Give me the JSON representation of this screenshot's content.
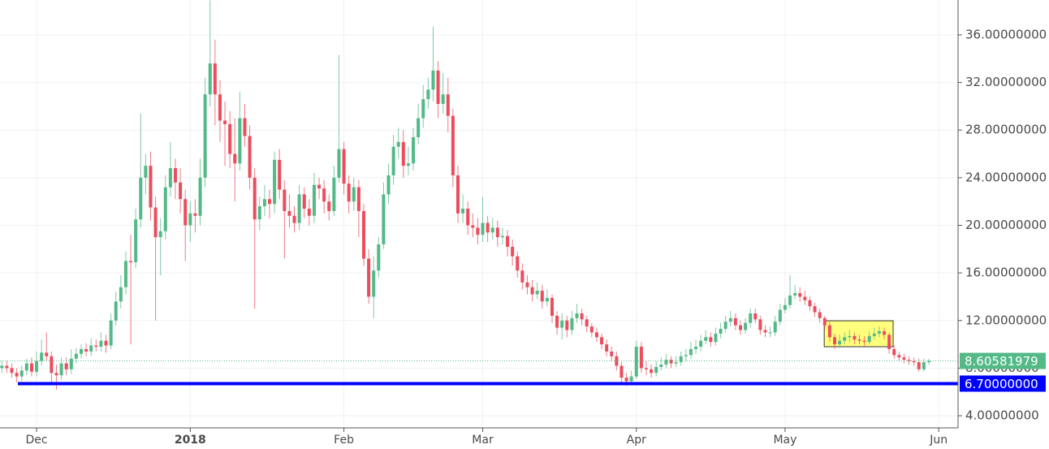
{
  "chart_data": {
    "type": "candlestick",
    "up_color": "#53b987",
    "down_color": "#eb4d5c",
    "grid": true,
    "xlim": [
      -0.38,
      192.9
    ],
    "ylim": [
      2.98,
      38.93
    ],
    "xticks": [
      {
        "value": 7,
        "label": "Dec"
      },
      {
        "value": 38,
        "label": "2018"
      },
      {
        "value": 69,
        "label": "Feb"
      },
      {
        "value": 97,
        "label": "Mar"
      },
      {
        "value": 128,
        "label": "Apr"
      },
      {
        "value": 158,
        "label": "May"
      },
      {
        "value": 189,
        "label": "Jun"
      }
    ],
    "yticks": [
      {
        "value": 4,
        "label": "4.00000000"
      },
      {
        "value": 8,
        "label": "8.00000000"
      },
      {
        "value": 12,
        "label": "12.00000000"
      },
      {
        "value": 16,
        "label": "16.00000000"
      },
      {
        "value": 20,
        "label": "20.00000000"
      },
      {
        "value": 24,
        "label": "24.00000000"
      },
      {
        "value": 28,
        "label": "28.00000000"
      },
      {
        "value": 32,
        "label": "32.00000000"
      },
      {
        "value": 36,
        "label": "36.00000000"
      }
    ],
    "price_lines": [
      {
        "value": 8.60581979,
        "label": "8.60581979",
        "color": "#53b987",
        "style": "dotted"
      },
      {
        "value": 6.7,
        "label": "6.70000000",
        "color": "#0000ff",
        "style": "solid"
      }
    ],
    "highlight": {
      "x": [
        165.9,
        179.8
      ],
      "y": [
        9.8,
        11.98
      ],
      "color": "#ffff66"
    },
    "x": [
      0,
      1,
      2,
      3,
      4,
      5,
      6,
      7,
      8,
      9,
      10,
      11,
      12,
      13,
      14,
      15,
      16,
      17,
      18,
      19,
      20,
      21,
      22,
      23,
      24,
      25,
      26,
      27,
      28,
      29,
      30,
      31,
      32,
      33,
      34,
      35,
      36,
      37,
      38,
      39,
      40,
      41,
      42,
      43,
      44,
      45,
      46,
      47,
      48,
      49,
      50,
      51,
      52,
      53,
      54,
      55,
      56,
      57,
      58,
      59,
      60,
      61,
      62,
      63,
      64,
      65,
      66,
      67,
      68,
      69,
      70,
      71,
      72,
      73,
      74,
      75,
      76,
      77,
      78,
      79,
      80,
      81,
      82,
      83,
      84,
      85,
      86,
      87,
      88,
      89,
      90,
      91,
      92,
      93,
      94,
      95,
      96,
      97,
      98,
      99,
      100,
      101,
      102,
      103,
      104,
      105,
      106,
      107,
      108,
      109,
      110,
      111,
      112,
      113,
      114,
      115,
      116,
      117,
      118,
      119,
      120,
      121,
      122,
      123,
      124,
      125,
      126,
      127,
      128,
      129,
      130,
      131,
      132,
      133,
      134,
      135,
      136,
      137,
      138,
      139,
      140,
      141,
      142,
      143,
      144,
      145,
      146,
      147,
      148,
      149,
      150,
      151,
      152,
      153,
      154,
      155,
      156,
      157,
      158,
      159,
      160,
      161,
      162,
      163,
      164,
      165,
      166,
      167,
      168,
      169,
      170,
      171,
      172,
      173,
      174,
      175,
      176,
      177,
      178,
      179,
      180,
      181,
      182,
      183,
      184,
      185,
      186,
      187
    ],
    "ohlc": [
      [
        8.0,
        8.6,
        7.6,
        8.2
      ],
      [
        8.2,
        8.6,
        7.6,
        8.0
      ],
      [
        8.0,
        8.4,
        7.2,
        7.6
      ],
      [
        7.6,
        8.0,
        6.8,
        7.3
      ],
      [
        7.3,
        8.2,
        6.9,
        7.8
      ],
      [
        7.8,
        8.8,
        7.4,
        8.4
      ],
      [
        8.4,
        8.9,
        7.3,
        7.7
      ],
      [
        7.7,
        9.4,
        7.3,
        8.6
      ],
      [
        8.6,
        10.4,
        8.2,
        9.3
      ],
      [
        9.3,
        11.0,
        8.6,
        9.0
      ],
      [
        9.0,
        9.4,
        6.6,
        7.6
      ],
      [
        7.6,
        8.3,
        6.2,
        7.4
      ],
      [
        7.4,
        8.9,
        7.0,
        8.4
      ],
      [
        8.4,
        8.9,
        7.4,
        7.9
      ],
      [
        7.9,
        9.6,
        7.5,
        8.8
      ],
      [
        8.8,
        9.7,
        8.4,
        9.2
      ],
      [
        9.2,
        10.0,
        8.8,
        9.6
      ],
      [
        9.6,
        10.1,
        9.0,
        9.4
      ],
      [
        9.4,
        10.5,
        9.0,
        9.9
      ],
      [
        9.9,
        10.4,
        9.4,
        9.8
      ],
      [
        9.8,
        11.0,
        9.4,
        10.3
      ],
      [
        10.3,
        10.8,
        9.3,
        9.9
      ],
      [
        9.9,
        12.6,
        9.6,
        12.0
      ],
      [
        12.0,
        14.4,
        11.6,
        13.6
      ],
      [
        13.6,
        15.8,
        13.0,
        14.8
      ],
      [
        14.8,
        17.8,
        14.2,
        17.0
      ],
      [
        17.0,
        19.2,
        10.0,
        16.9
      ],
      [
        16.9,
        21.4,
        16.4,
        20.5
      ],
      [
        20.5,
        29.4,
        19.8,
        24.0
      ],
      [
        24.0,
        26.0,
        22.6,
        25.0
      ],
      [
        25.0,
        26.2,
        20.4,
        21.5
      ],
      [
        21.5,
        22.4,
        12.0,
        19.0
      ],
      [
        19.0,
        20.6,
        15.8,
        19.5
      ],
      [
        19.5,
        24.2,
        18.8,
        23.2
      ],
      [
        23.2,
        27.0,
        22.4,
        24.8
      ],
      [
        24.8,
        25.6,
        22.2,
        23.6
      ],
      [
        23.6,
        24.8,
        21.0,
        22.2
      ],
      [
        22.2,
        23.0,
        17.0,
        20.0
      ],
      [
        20.0,
        22.0,
        18.6,
        21.0
      ],
      [
        21.0,
        22.2,
        19.4,
        20.8
      ],
      [
        20.8,
        25.6,
        20.0,
        24.0
      ],
      [
        24.0,
        32.4,
        23.2,
        31.0
      ],
      [
        31.0,
        38.9,
        30.0,
        33.6
      ],
      [
        33.6,
        35.6,
        28.4,
        31.0
      ],
      [
        31.0,
        32.2,
        27.0,
        28.8
      ],
      [
        28.8,
        30.4,
        25.0,
        28.5
      ],
      [
        28.5,
        29.6,
        24.8,
        26.0
      ],
      [
        26.0,
        29.0,
        22.0,
        25.2
      ],
      [
        25.2,
        31.2,
        24.6,
        29.0
      ],
      [
        29.0,
        30.2,
        26.6,
        27.5
      ],
      [
        27.5,
        28.4,
        23.0,
        24.0
      ],
      [
        24.0,
        24.8,
        13.0,
        20.5
      ],
      [
        20.5,
        22.4,
        19.6,
        21.6
      ],
      [
        21.6,
        23.4,
        20.8,
        22.2
      ],
      [
        22.2,
        23.0,
        20.6,
        21.8
      ],
      [
        21.8,
        26.2,
        21.0,
        25.5
      ],
      [
        25.5,
        26.4,
        22.2,
        23.0
      ],
      [
        23.0,
        23.8,
        17.2,
        21.2
      ],
      [
        21.2,
        22.6,
        19.8,
        20.8
      ],
      [
        20.8,
        21.6,
        19.4,
        20.2
      ],
      [
        20.2,
        23.4,
        19.6,
        22.6
      ],
      [
        22.6,
        23.2,
        20.6,
        21.4
      ],
      [
        21.4,
        22.2,
        20.0,
        20.8
      ],
      [
        20.8,
        24.4,
        20.2,
        23.4
      ],
      [
        23.4,
        24.0,
        22.2,
        23.1
      ],
      [
        23.1,
        23.8,
        21.0,
        22.0
      ],
      [
        22.0,
        22.6,
        20.4,
        21.2
      ],
      [
        21.2,
        25.0,
        20.8,
        24.0
      ],
      [
        24.0,
        34.3,
        23.6,
        26.4
      ],
      [
        26.4,
        27.0,
        22.6,
        23.5
      ],
      [
        23.5,
        24.2,
        21.0,
        22.0
      ],
      [
        22.0,
        24.0,
        21.2,
        23.2
      ],
      [
        23.2,
        23.8,
        19.0,
        21.2
      ],
      [
        21.2,
        21.8,
        16.6,
        17.2
      ],
      [
        17.2,
        18.0,
        13.4,
        14.0
      ],
      [
        14.0,
        17.4,
        12.2,
        16.2
      ],
      [
        16.2,
        19.0,
        15.6,
        18.4
      ],
      [
        18.4,
        23.6,
        18.0,
        22.6
      ],
      [
        22.6,
        25.2,
        21.8,
        24.2
      ],
      [
        24.2,
        27.6,
        23.4,
        26.6
      ],
      [
        26.6,
        28.2,
        25.6,
        27.0
      ],
      [
        27.0,
        28.0,
        24.0,
        25.0
      ],
      [
        25.0,
        26.6,
        24.2,
        25.2
      ],
      [
        25.2,
        28.2,
        24.6,
        27.4
      ],
      [
        27.4,
        30.2,
        26.8,
        29.0
      ],
      [
        29.0,
        31.8,
        28.2,
        30.6
      ],
      [
        30.6,
        32.4,
        29.8,
        31.4
      ],
      [
        31.4,
        36.7,
        30.4,
        33.0
      ],
      [
        33.0,
        33.8,
        29.0,
        30.2
      ],
      [
        30.2,
        32.8,
        29.4,
        31.0
      ],
      [
        31.0,
        32.4,
        27.8,
        29.2
      ],
      [
        29.2,
        29.8,
        23.2,
        24.2
      ],
      [
        24.2,
        25.0,
        20.2,
        21.0
      ],
      [
        21.0,
        22.6,
        20.2,
        21.4
      ],
      [
        21.4,
        22.0,
        19.2,
        20.0
      ],
      [
        20.0,
        21.0,
        19.0,
        19.8
      ],
      [
        19.8,
        20.6,
        18.4,
        19.2
      ],
      [
        19.2,
        22.4,
        18.6,
        20.2
      ],
      [
        20.2,
        20.8,
        18.6,
        19.4
      ],
      [
        19.4,
        20.6,
        18.8,
        19.8
      ],
      [
        19.8,
        20.4,
        18.2,
        19.0
      ],
      [
        19.0,
        19.8,
        18.4,
        19.1
      ],
      [
        19.1,
        19.6,
        17.4,
        18.2
      ],
      [
        18.2,
        18.8,
        16.6,
        17.4
      ],
      [
        17.4,
        17.8,
        15.6,
        16.2
      ],
      [
        16.2,
        16.8,
        14.6,
        15.2
      ],
      [
        15.2,
        15.8,
        14.2,
        14.8
      ],
      [
        14.8,
        15.4,
        13.6,
        14.2
      ],
      [
        14.2,
        15.2,
        13.8,
        14.5
      ],
      [
        14.5,
        15.0,
        13.0,
        13.6
      ],
      [
        13.6,
        14.6,
        13.2,
        13.9
      ],
      [
        13.9,
        14.2,
        11.8,
        12.4
      ],
      [
        12.4,
        12.8,
        10.8,
        11.4
      ],
      [
        11.4,
        12.6,
        10.4,
        12.0
      ],
      [
        12.0,
        12.4,
        10.6,
        11.2
      ],
      [
        11.2,
        12.8,
        10.8,
        12.2
      ],
      [
        12.2,
        13.4,
        11.8,
        12.6
      ],
      [
        12.6,
        13.0,
        11.6,
        12.1
      ],
      [
        12.1,
        12.4,
        11.0,
        11.5
      ],
      [
        11.5,
        11.8,
        10.6,
        11.0
      ],
      [
        11.0,
        11.4,
        10.2,
        10.6
      ],
      [
        10.6,
        10.9,
        9.6,
        10.0
      ],
      [
        10.0,
        10.4,
        9.0,
        9.4
      ],
      [
        9.4,
        9.8,
        8.6,
        9.0
      ],
      [
        9.0,
        9.4,
        7.8,
        8.2
      ],
      [
        8.2,
        8.5,
        6.8,
        7.2
      ],
      [
        7.2,
        7.6,
        6.5,
        6.9
      ],
      [
        6.9,
        7.8,
        6.6,
        7.3
      ],
      [
        7.3,
        10.3,
        7.1,
        9.8
      ],
      [
        9.8,
        10.2,
        7.6,
        8.0
      ],
      [
        8.0,
        8.6,
        7.4,
        7.9
      ],
      [
        7.9,
        8.3,
        7.2,
        7.6
      ],
      [
        7.6,
        8.6,
        7.3,
        8.1
      ],
      [
        8.1,
        8.9,
        7.8,
        8.3
      ],
      [
        8.3,
        9.2,
        8.0,
        8.7
      ],
      [
        8.7,
        9.0,
        8.0,
        8.4
      ],
      [
        8.4,
        9.0,
        8.1,
        8.5
      ],
      [
        8.5,
        9.4,
        8.2,
        9.0
      ],
      [
        9.0,
        9.6,
        8.6,
        9.1
      ],
      [
        9.1,
        10.2,
        8.8,
        9.6
      ],
      [
        9.6,
        10.4,
        9.2,
        9.8
      ],
      [
        9.8,
        10.8,
        9.4,
        10.3
      ],
      [
        10.3,
        11.2,
        10.0,
        10.6
      ],
      [
        10.6,
        11.0,
        9.8,
        10.2
      ],
      [
        10.2,
        11.4,
        9.9,
        10.9
      ],
      [
        10.9,
        11.8,
        10.5,
        11.3
      ],
      [
        11.3,
        12.4,
        11.0,
        11.9
      ],
      [
        11.9,
        12.8,
        11.5,
        12.2
      ],
      [
        12.2,
        12.6,
        11.2,
        11.6
      ],
      [
        11.6,
        12.0,
        10.8,
        11.2
      ],
      [
        11.2,
        12.2,
        10.9,
        11.8
      ],
      [
        11.8,
        13.0,
        11.4,
        12.6
      ],
      [
        12.6,
        13.0,
        11.8,
        12.1
      ],
      [
        12.1,
        12.4,
        10.8,
        11.2
      ],
      [
        11.2,
        11.6,
        10.6,
        11.0
      ],
      [
        11.0,
        11.5,
        10.6,
        11.0
      ],
      [
        11.0,
        12.4,
        10.7,
        11.9
      ],
      [
        11.9,
        13.4,
        11.6,
        12.9
      ],
      [
        12.9,
        13.9,
        12.6,
        13.3
      ],
      [
        13.3,
        15.8,
        13.0,
        14.1
      ],
      [
        14.1,
        15.0,
        13.8,
        14.3
      ],
      [
        14.3,
        14.8,
        13.6,
        14.0
      ],
      [
        14.0,
        14.5,
        13.3,
        13.7
      ],
      [
        13.7,
        14.0,
        12.8,
        13.2
      ],
      [
        13.2,
        13.5,
        12.3,
        12.7
      ],
      [
        12.7,
        13.0,
        11.8,
        12.2
      ],
      [
        12.2,
        12.4,
        11.2,
        11.6
      ],
      [
        11.6,
        11.9,
        10.2,
        10.6
      ],
      [
        10.6,
        10.9,
        9.6,
        10.0
      ],
      [
        10.0,
        10.8,
        9.7,
        10.3
      ],
      [
        10.3,
        11.0,
        10.0,
        10.6
      ],
      [
        10.6,
        11.2,
        10.2,
        10.7
      ],
      [
        10.7,
        11.0,
        10.0,
        10.4
      ],
      [
        10.4,
        10.8,
        10.0,
        10.3
      ],
      [
        10.3,
        10.7,
        9.8,
        10.2
      ],
      [
        10.2,
        11.1,
        10.0,
        10.7
      ],
      [
        10.7,
        11.4,
        10.4,
        10.9
      ],
      [
        10.9,
        11.5,
        10.6,
        11.1
      ],
      [
        11.1,
        11.4,
        10.4,
        10.8
      ],
      [
        10.8,
        11.0,
        9.2,
        9.6
      ],
      [
        9.6,
        9.9,
        8.8,
        9.1
      ],
      [
        9.1,
        9.4,
        8.6,
        8.9
      ],
      [
        8.9,
        9.2,
        8.4,
        8.7
      ],
      [
        8.7,
        9.0,
        8.3,
        8.6
      ],
      [
        8.6,
        8.9,
        8.2,
        8.5
      ],
      [
        8.5,
        8.8,
        7.7,
        7.9
      ],
      [
        7.9,
        8.8,
        7.7,
        8.5
      ],
      [
        8.5,
        8.8,
        8.3,
        8.60581979
      ]
    ]
  }
}
